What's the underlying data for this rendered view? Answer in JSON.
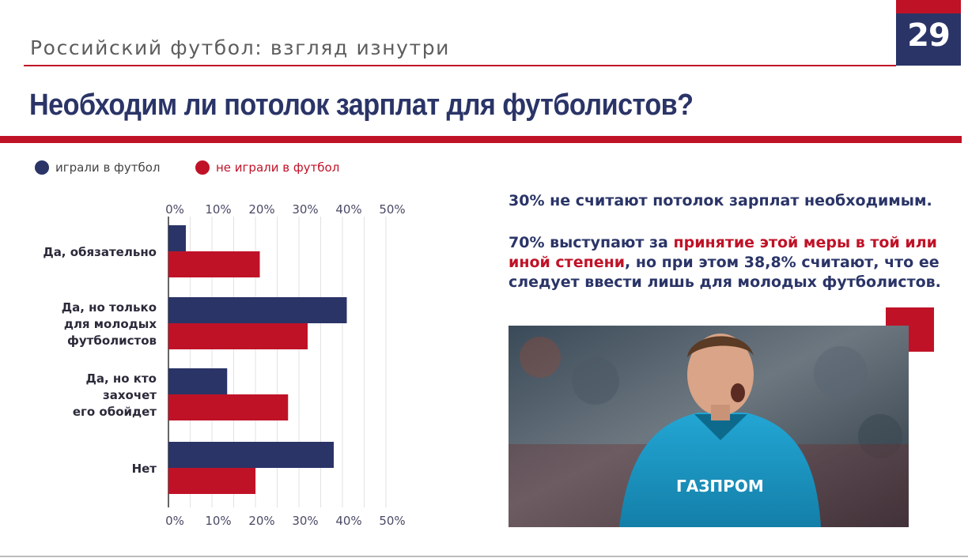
{
  "page_number": "29",
  "subtitle": "Российский футбол: взгляд изнутри",
  "heading": "Необходим ли потолок зарплат для футболистов?",
  "colors": {
    "navy": "#2a3467",
    "red": "#c01227"
  },
  "legend": [
    {
      "label": "играли в футбол",
      "color": "#2a3467"
    },
    {
      "label": "не играли в футбол",
      "color": "#c01227"
    }
  ],
  "chart_data": {
    "type": "bar",
    "orientation": "horizontal",
    "categories": [
      [
        "Да, обязательно"
      ],
      [
        "Да, но только",
        "для  молодых",
        "футболистов"
      ],
      [
        "Да, но кто",
        "захочет",
        "его обойдет"
      ],
      [
        "Нет"
      ]
    ],
    "series": [
      {
        "name": "играли в футбол",
        "color": "#2a3467",
        "values": [
          4,
          41,
          13.5,
          38
        ]
      },
      {
        "name": "не играли в футбол",
        "color": "#c01227",
        "values": [
          21,
          32,
          27.5,
          20
        ]
      }
    ],
    "ticks": [
      "0%",
      "10%",
      "20%",
      "30%",
      "40%",
      "50%"
    ],
    "xlim": [
      0,
      50
    ],
    "grid": true,
    "legend_position": "top-left"
  },
  "text": {
    "line1": "30% не считают потолок зарплат необходимым.",
    "line2_a": "70% выступают за ",
    "line2_highlight": "принятие этой меры в той или иной степени",
    "line2_b": ", но при этом 38,8% считают, что ее следует ввести лишь для молодых футболистов."
  },
  "photo": {
    "icon": "football-player-photo",
    "shirt_sponsor": "ГАЗПРОМ"
  }
}
